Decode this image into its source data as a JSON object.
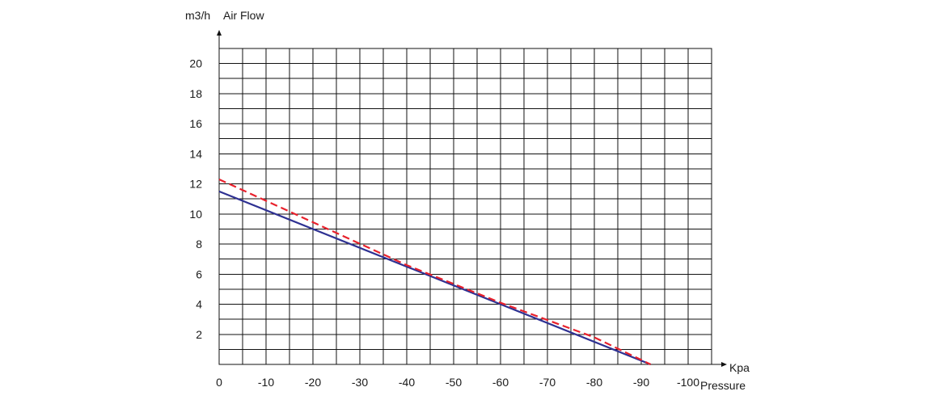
{
  "chart_data": {
    "type": "line",
    "y_unit": "m3/h",
    "y_label": "Air Flow",
    "x_unit": "Kpa",
    "x_label": "Pressure",
    "x_ticks": [
      "0",
      "-10",
      "-20",
      "-30",
      "-40",
      "-50",
      "-60",
      "-70",
      "-80",
      "-90",
      "-100"
    ],
    "y_ticks": [
      "2",
      "4",
      "6",
      "8",
      "10",
      "12",
      "14",
      "16",
      "18",
      "20"
    ],
    "xlim": [
      0,
      -105
    ],
    "ylim": [
      0,
      21
    ],
    "grid": true,
    "series": [
      {
        "color": "#2e3192",
        "dash": "solid",
        "x": [
          0,
          -92
        ],
        "y": [
          11.5,
          0
        ]
      },
      {
        "color": "#e8212c",
        "dash": "dashed",
        "x": [
          0,
          -40,
          -60,
          -80,
          -92
        ],
        "y": [
          12.3,
          6.6,
          4.1,
          1.8,
          0
        ]
      }
    ]
  }
}
